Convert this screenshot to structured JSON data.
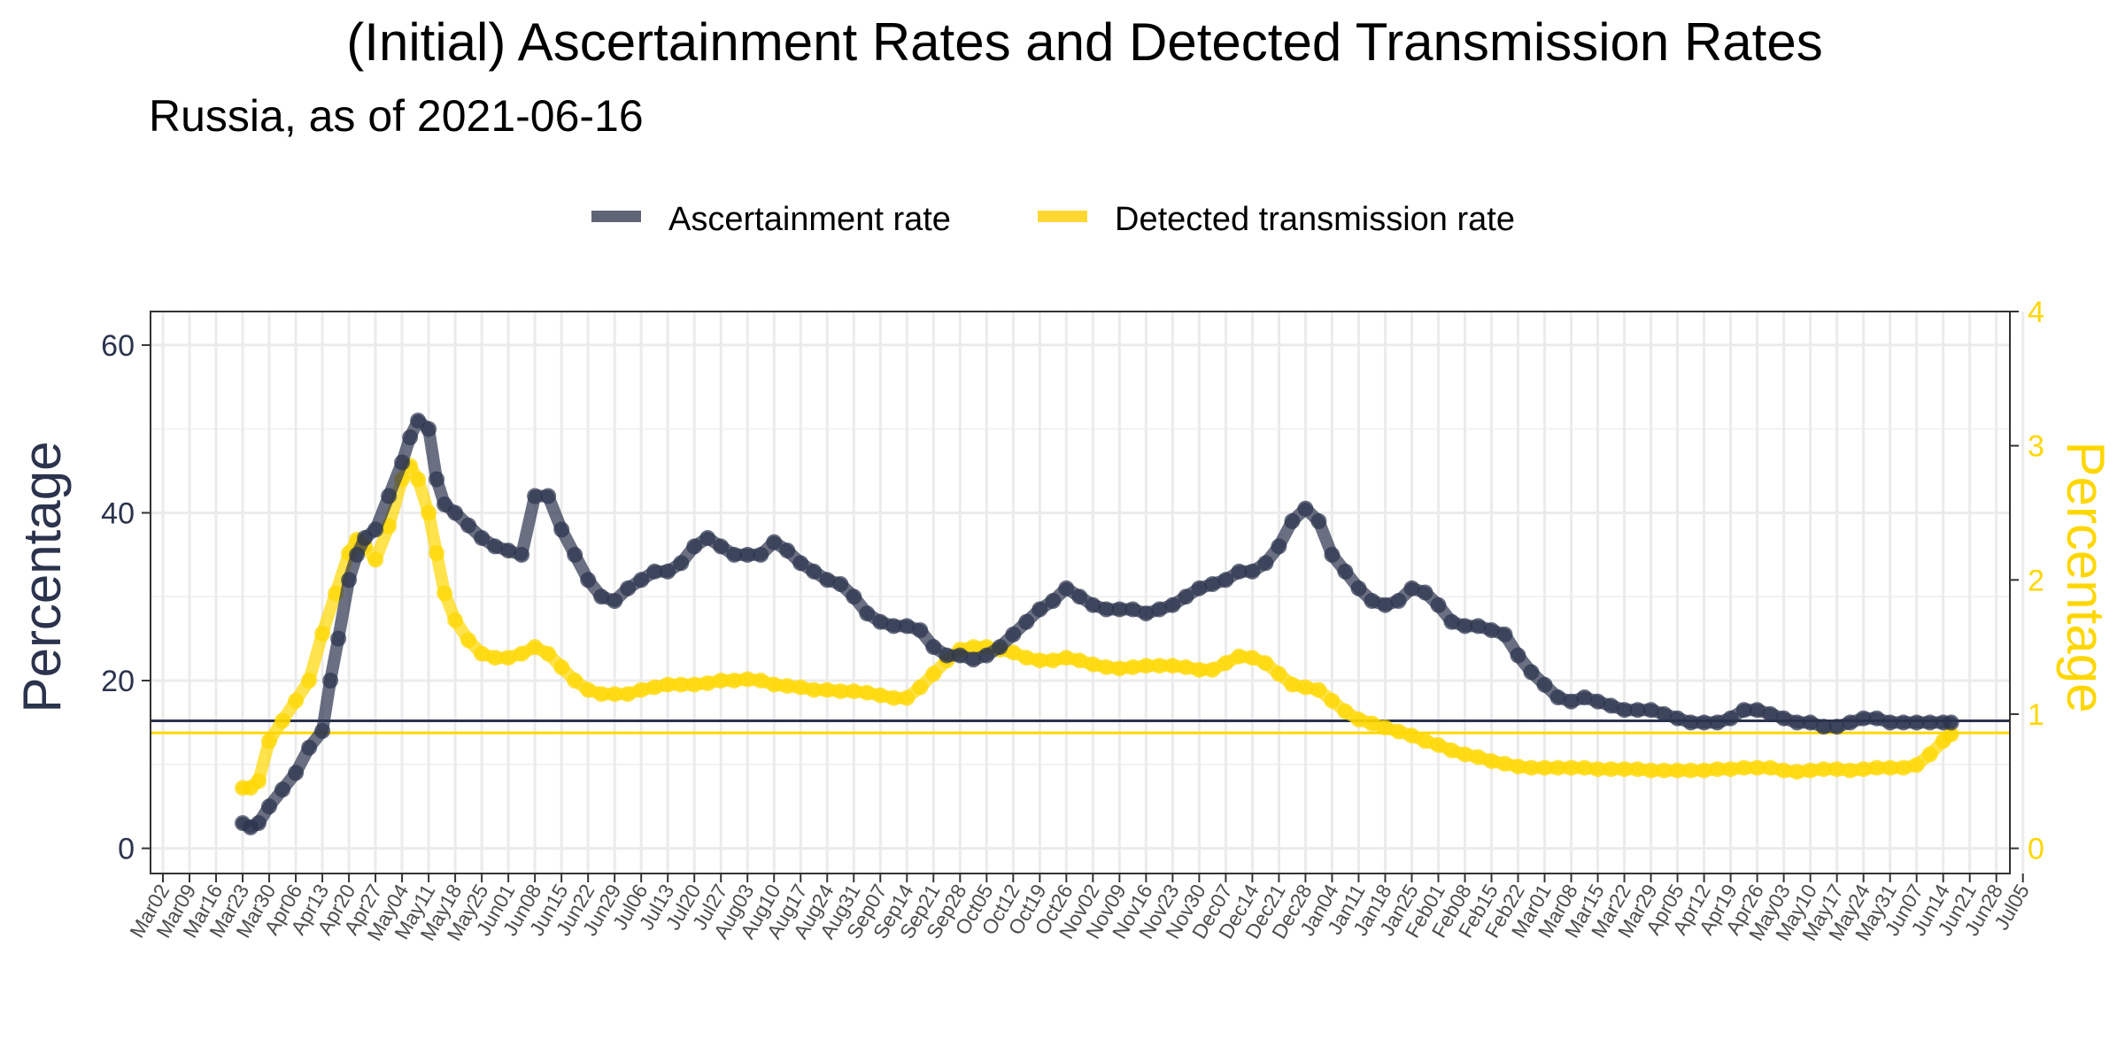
{
  "chart_data": {
    "type": "line",
    "title": "(Initial) Ascertainment Rates and Detected Transmission Rates",
    "subtitle": "Russia, as of 2021-06-16",
    "ylabel": "Percentage",
    "ylabel_right": "Percentage",
    "y_ticks": [
      "0",
      "20",
      "40",
      "60"
    ],
    "y_right_ticks": [
      "0",
      "1",
      "2",
      "3",
      "4"
    ],
    "ylim": [
      -3,
      64
    ],
    "ylim_right": [
      -0.1875,
      4.0
    ],
    "x_ticks": [
      "Mar02",
      "Mar09",
      "Mar16",
      "Mar23",
      "Mar30",
      "Apr06",
      "Apr13",
      "Apr20",
      "Apr27",
      "May04",
      "May11",
      "May18",
      "May25",
      "Jun01",
      "Jun08",
      "Jun15",
      "Jun22",
      "Jun29",
      "Jul06",
      "Jul13",
      "Jul20",
      "Jul27",
      "Aug03",
      "Aug10",
      "Aug17",
      "Aug24",
      "Aug31",
      "Sep07",
      "Sep14",
      "Sep21",
      "Sep28",
      "Oct05",
      "Oct12",
      "Oct19",
      "Oct26",
      "Nov02",
      "Nov09",
      "Nov16",
      "Nov23",
      "Nov30",
      "Dec07",
      "Dec14",
      "Dec21",
      "Dec28",
      "Jan04",
      "Jan11",
      "Jan18",
      "Jan25",
      "Feb01",
      "Feb08",
      "Feb15",
      "Feb22",
      "Mar01",
      "Mar08",
      "Mar15",
      "Mar22",
      "Mar29",
      "Apr05",
      "Apr12",
      "Apr19",
      "Apr26",
      "May03",
      "May10",
      "May17",
      "May24",
      "May31",
      "Jun07",
      "Jun14",
      "Jun21",
      "Jun28",
      "Jul05"
    ],
    "legend_placement": "top",
    "grid": true,
    "series": [
      {
        "name": "Ascertainment rate",
        "axis": "left",
        "color": "#2b334d",
        "x_week_offset": [
          3.0,
          3.3,
          3.6,
          4.0,
          4.5,
          5.0,
          5.5,
          6.0,
          6.3,
          6.6,
          7.0,
          7.3,
          7.6,
          8.0,
          8.5,
          9.0,
          9.3,
          9.6,
          10.0,
          10.3,
          10.6,
          11.0,
          11.5,
          12.0,
          12.5,
          13.0,
          13.5,
          14.0,
          14.5,
          15.0,
          15.5,
          16.0,
          16.5,
          17.0,
          17.5,
          18.0,
          18.5,
          19.0,
          19.5,
          20.0,
          20.5,
          21.0,
          21.5,
          22.0,
          22.5,
          23.0,
          23.5,
          24.0,
          24.5,
          25.0,
          25.5,
          26.0,
          26.5,
          27.0,
          27.5,
          28.0,
          28.5,
          29.0,
          29.5,
          30.0,
          30.5,
          31.0,
          31.5,
          32.0,
          32.5,
          33.0,
          33.5,
          34.0,
          34.5,
          35.0,
          35.5,
          36.0,
          36.5,
          37.0,
          37.5,
          38.0,
          38.5,
          39.0,
          39.5,
          40.0,
          40.5,
          41.0,
          41.5,
          42.0,
          42.5,
          43.0,
          43.5,
          44.0,
          44.5,
          45.0,
          45.5,
          46.0,
          46.5,
          47.0,
          47.5,
          48.0,
          48.5,
          49.0,
          49.5,
          50.0,
          50.5,
          51.0,
          51.5,
          52.0,
          52.5,
          53.0,
          53.5,
          54.0,
          54.5,
          55.0,
          55.5,
          56.0,
          56.5,
          57.0,
          57.5,
          58.0,
          58.5,
          59.0,
          59.5,
          60.0,
          60.5,
          61.0,
          61.5,
          62.0,
          62.5,
          63.0,
          63.5,
          64.0,
          64.5,
          65.0,
          65.5,
          66.0,
          66.5,
          67.0,
          67.3
        ],
        "values": [
          3,
          2.5,
          3,
          5,
          7,
          9,
          12,
          14,
          20,
          25,
          32,
          35,
          37,
          38,
          42,
          46,
          49,
          51,
          50,
          44,
          41,
          40,
          38.5,
          37,
          36,
          35.5,
          35,
          42,
          42,
          38,
          35,
          32,
          30,
          29.5,
          31,
          32,
          33,
          33,
          34,
          36,
          37,
          36,
          35,
          35,
          35,
          36.5,
          35.5,
          34,
          33,
          32,
          31.5,
          30,
          28,
          27,
          26.5,
          26.5,
          26,
          24,
          23,
          23,
          22.5,
          23,
          24,
          25.5,
          27,
          28.5,
          29.5,
          31,
          30,
          29,
          28.5,
          28.5,
          28.5,
          28,
          28.5,
          29,
          30,
          31,
          31.5,
          32,
          33,
          33,
          34,
          36,
          39,
          40.5,
          39,
          35,
          33,
          31,
          29.5,
          29,
          29.5,
          31,
          30.5,
          29,
          27,
          26.5,
          26.5,
          26,
          25.5,
          23,
          21,
          19.5,
          18,
          17.5,
          18,
          17.5,
          17,
          16.5,
          16.5,
          16.5,
          16,
          15.5,
          15,
          15,
          15,
          15.5,
          16.5,
          16.5,
          16,
          15.5,
          15,
          15,
          14.5,
          14.5,
          15,
          15.5,
          15.5,
          15,
          15,
          15,
          15,
          15,
          15,
          15
        ],
        "reference_line": 15.2
      },
      {
        "name": "Detected transmission rate",
        "axis": "right",
        "color": "#FFD700",
        "x_week_offset": [
          3.0,
          3.3,
          3.6,
          4.0,
          4.5,
          5.0,
          5.5,
          6.0,
          6.5,
          7.0,
          7.3,
          7.6,
          8.0,
          8.5,
          9.0,
          9.3,
          9.6,
          10.0,
          10.3,
          10.6,
          11.0,
          11.5,
          12.0,
          12.5,
          13.0,
          13.5,
          14.0,
          14.5,
          15.0,
          15.5,
          16.0,
          16.5,
          17.0,
          17.5,
          18.0,
          18.5,
          19.0,
          19.5,
          20.0,
          20.5,
          21.0,
          21.5,
          22.0,
          22.5,
          23.0,
          23.5,
          24.0,
          24.5,
          25.0,
          25.5,
          26.0,
          26.5,
          27.0,
          27.5,
          28.0,
          28.5,
          29.0,
          29.5,
          30.0,
          30.5,
          31.0,
          31.5,
          32.0,
          32.5,
          33.0,
          33.5,
          34.0,
          34.5,
          35.0,
          35.5,
          36.0,
          36.5,
          37.0,
          37.5,
          38.0,
          38.5,
          39.0,
          39.5,
          40.0,
          40.5,
          41.0,
          41.5,
          42.0,
          42.5,
          43.0,
          43.5,
          44.0,
          44.5,
          45.0,
          45.5,
          46.0,
          46.5,
          47.0,
          47.5,
          48.0,
          48.5,
          49.0,
          49.5,
          50.0,
          50.5,
          51.0,
          51.5,
          52.0,
          52.5,
          53.0,
          53.5,
          54.0,
          54.5,
          55.0,
          55.5,
          56.0,
          56.5,
          57.0,
          57.5,
          58.0,
          58.5,
          59.0,
          59.5,
          60.0,
          60.5,
          61.0,
          61.5,
          62.0,
          62.5,
          63.0,
          63.5,
          64.0,
          64.5,
          65.0,
          65.5,
          66.0,
          66.5,
          67.0,
          67.3
        ],
        "values": [
          0.45,
          0.45,
          0.5,
          0.8,
          0.95,
          1.1,
          1.25,
          1.6,
          1.9,
          2.2,
          2.3,
          2.25,
          2.15,
          2.4,
          2.75,
          2.85,
          2.75,
          2.5,
          2.2,
          1.9,
          1.7,
          1.55,
          1.45,
          1.42,
          1.42,
          1.45,
          1.5,
          1.45,
          1.35,
          1.25,
          1.18,
          1.15,
          1.15,
          1.15,
          1.18,
          1.2,
          1.22,
          1.22,
          1.22,
          1.23,
          1.25,
          1.25,
          1.26,
          1.25,
          1.22,
          1.21,
          1.2,
          1.18,
          1.18,
          1.17,
          1.17,
          1.16,
          1.14,
          1.12,
          1.12,
          1.2,
          1.3,
          1.4,
          1.48,
          1.5,
          1.5,
          1.48,
          1.46,
          1.42,
          1.4,
          1.4,
          1.42,
          1.4,
          1.37,
          1.35,
          1.34,
          1.35,
          1.36,
          1.36,
          1.36,
          1.35,
          1.33,
          1.33,
          1.38,
          1.43,
          1.42,
          1.38,
          1.3,
          1.22,
          1.2,
          1.18,
          1.1,
          1.02,
          0.96,
          0.93,
          0.9,
          0.87,
          0.84,
          0.8,
          0.77,
          0.73,
          0.7,
          0.68,
          0.65,
          0.63,
          0.61,
          0.6,
          0.6,
          0.6,
          0.6,
          0.6,
          0.59,
          0.59,
          0.59,
          0.59,
          0.58,
          0.58,
          0.58,
          0.58,
          0.58,
          0.59,
          0.59,
          0.6,
          0.6,
          0.6,
          0.58,
          0.57,
          0.58,
          0.59,
          0.59,
          0.58,
          0.59,
          0.6,
          0.6,
          0.6,
          0.62,
          0.7,
          0.8,
          0.85
        ],
        "reference_line": 0.86
      }
    ]
  }
}
